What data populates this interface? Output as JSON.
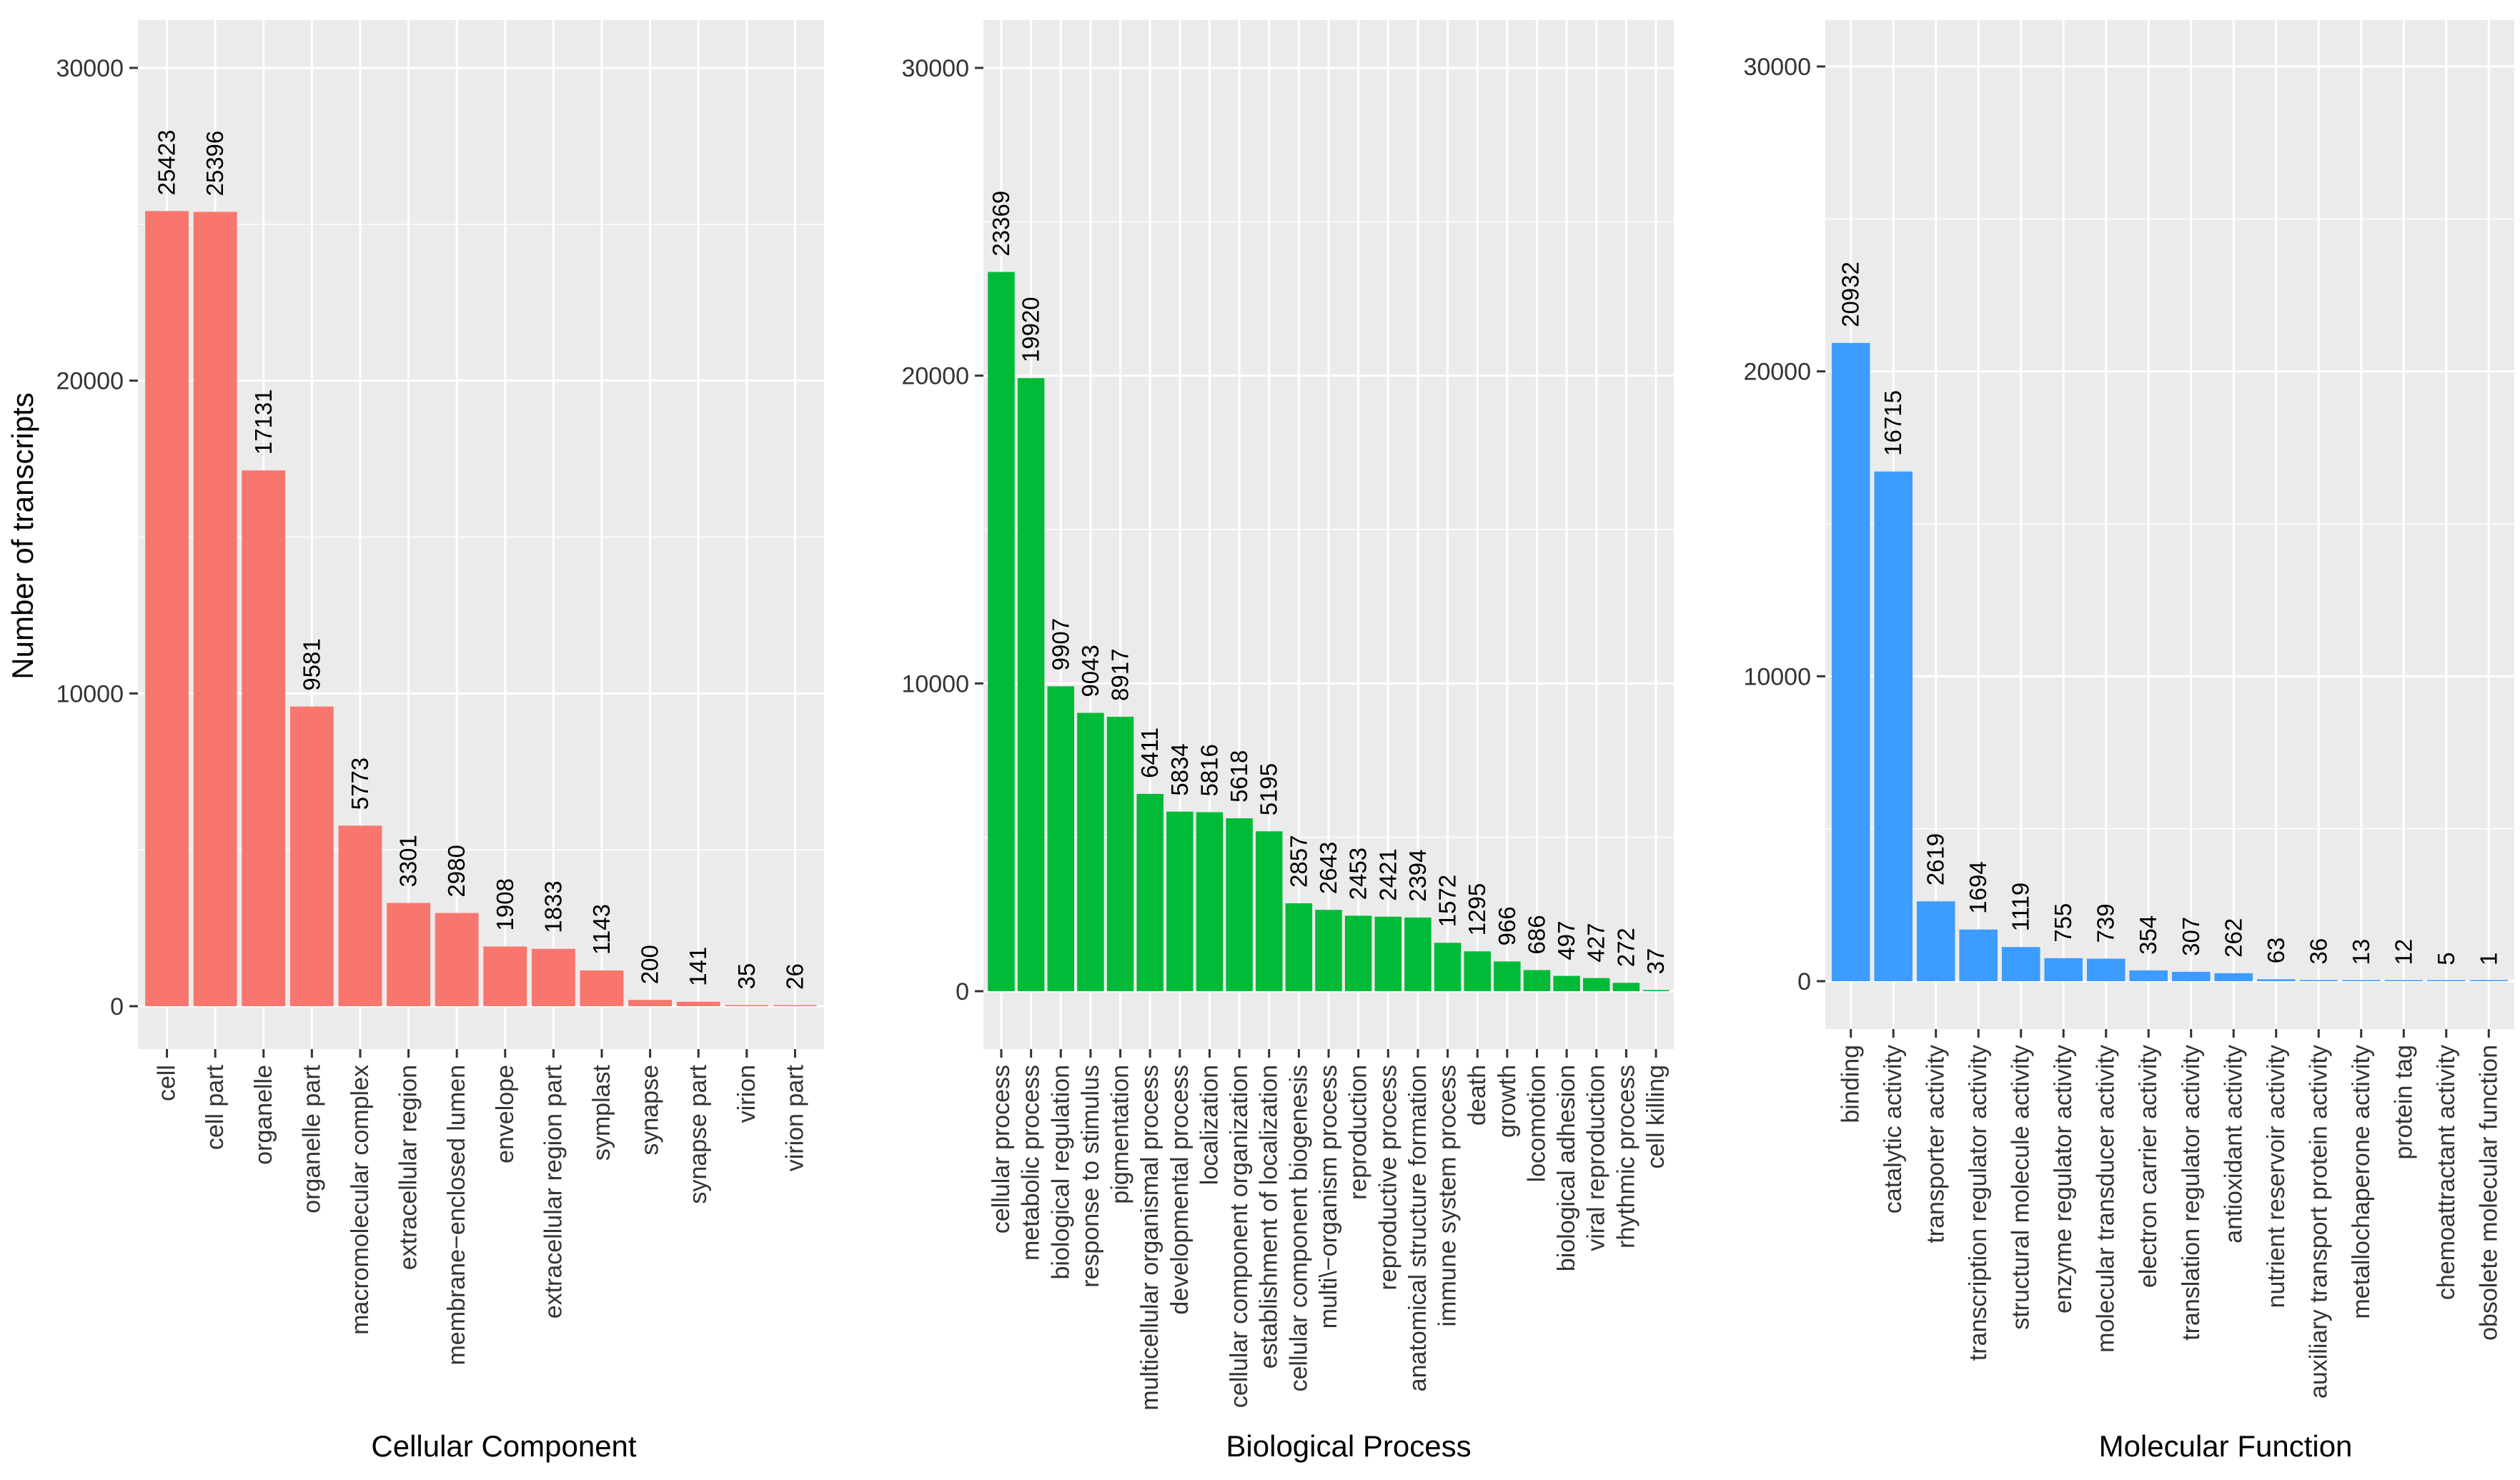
{
  "figure": {
    "ylabel": "Number of transcripts"
  },
  "chart_data": [
    {
      "type": "bar",
      "title": "",
      "xlabel": "Cellular Component",
      "ylabel": "Number of transcripts",
      "ylim": [
        0,
        30000
      ],
      "yticks": [
        0,
        10000,
        20000,
        30000
      ],
      "color": "#f8766d",
      "categories": [
        "cell",
        "cell part",
        "organelle",
        "organelle part",
        "macromolecular complex",
        "extracellular region",
        "membrane−enclosed lumen",
        "envelope",
        "extracellular region part",
        "symplast",
        "synapse",
        "synapse part",
        "virion",
        "virion part"
      ],
      "values": [
        25423,
        25396,
        17131,
        9581,
        5773,
        3301,
        2980,
        1908,
        1833,
        1143,
        200,
        141,
        35,
        26
      ]
    },
    {
      "type": "bar",
      "title": "",
      "xlabel": "Biological Process",
      "ylabel": "",
      "ylim": [
        0,
        30000
      ],
      "yticks": [
        0,
        10000,
        20000,
        30000
      ],
      "color": "#00ba38",
      "categories": [
        "cellular process",
        "metabolic process",
        "biological regulation",
        "response to stimulus",
        "pigmentation",
        "multicellular organismal process",
        "developmental process",
        "localization",
        "cellular component organization",
        "establishment of localization",
        "cellular component biogenesis",
        "multi\\−organism process",
        "reproduction",
        "reproductive process",
        "anatomical structure formation",
        "immune system process",
        "death",
        "growth",
        "locomotion",
        "biological adhesion",
        "viral reproduction",
        "rhythmic process",
        "cell killing"
      ],
      "values": [
        23369,
        19920,
        9907,
        9043,
        8917,
        6411,
        5834,
        5816,
        5618,
        5195,
        2857,
        2643,
        2453,
        2421,
        2394,
        1572,
        1295,
        966,
        686,
        497,
        427,
        272,
        37
      ]
    },
    {
      "type": "bar",
      "title": "",
      "xlabel": "Molecular Function",
      "ylabel": "",
      "ylim": [
        0,
        30000
      ],
      "yticks": [
        0,
        10000,
        20000,
        30000
      ],
      "color": "#3d9cff",
      "categories": [
        "binding",
        "catalytic activity",
        "transporter activity",
        "transcription regulator activity",
        "structural molecule activity",
        "enzyme regulator activity",
        "molecular transducer activity",
        "electron carrier activity",
        "translation regulator activity",
        "antioxidant activity",
        "nutrient reservoir activity",
        "auxiliary transport protein activity",
        "metallochaperone activity",
        "protein tag",
        "chemoattractant activity",
        "obsolete molecular function"
      ],
      "values": [
        20932,
        16715,
        2619,
        1694,
        1119,
        755,
        739,
        354,
        307,
        262,
        63,
        36,
        13,
        12,
        5,
        1
      ]
    }
  ]
}
